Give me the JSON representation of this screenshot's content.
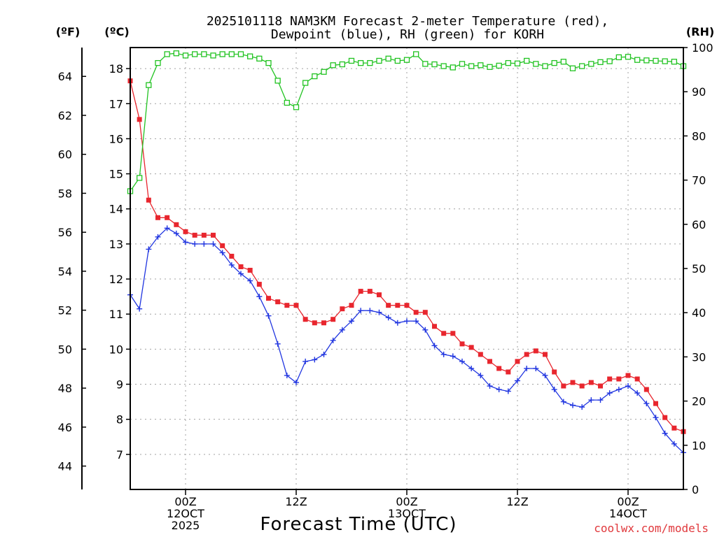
{
  "chart_data": {
    "type": "line",
    "title_line1": "2025101118 NAM3KM Forecast 2-meter Temperature (red),",
    "title_line2": "Dewpoint (blue), RH (green) for KORH",
    "xlabel": "Forecast Time (UTC)",
    "credit": "coolwx.com/models",
    "units": {
      "fahrenheit": "(ºF)",
      "celsius": "(ºC)",
      "rh": "(RH)"
    },
    "fahrenheit_ticks": [
      "64",
      "62",
      "60",
      "58",
      "56",
      "54",
      "52",
      "50",
      "48",
      "46",
      "44"
    ],
    "fahrenheit_values": [
      64,
      62,
      60,
      58,
      56,
      54,
      52,
      50,
      48,
      46,
      44
    ],
    "celsius_ticks": [
      "18",
      "17",
      "16",
      "15",
      "14",
      "13",
      "12",
      "11",
      "10",
      "9",
      "8",
      "7"
    ],
    "celsius_values": [
      18,
      17,
      16,
      15,
      14,
      13,
      12,
      11,
      10,
      9,
      8,
      7
    ],
    "celsius_range": [
      6.0,
      18.6
    ],
    "rh_ticks": [
      "100",
      "90",
      "80",
      "70",
      "60",
      "50",
      "40",
      "30",
      "20",
      "10",
      "0"
    ],
    "rh_values": [
      100,
      90,
      80,
      70,
      60,
      50,
      40,
      30,
      20,
      10,
      0
    ],
    "rh_range": [
      0,
      100
    ],
    "forecast_hour_range": [
      0,
      60
    ],
    "x_ticks": [
      {
        "hour": 6,
        "line1": "00Z",
        "line2": "12OCT",
        "line3": "2025"
      },
      {
        "hour": 18,
        "line1": "12Z",
        "line2": "",
        "line3": ""
      },
      {
        "hour": 30,
        "line1": "00Z",
        "line2": "13OCT",
        "line3": ""
      },
      {
        "hour": 42,
        "line1": "12Z",
        "line2": "",
        "line3": ""
      },
      {
        "hour": 54,
        "line1": "00Z",
        "line2": "14OCT",
        "line3": ""
      }
    ],
    "series": [
      {
        "name": "Temperature",
        "units": "C",
        "color": "#e8262e",
        "marker": "square",
        "values": [
          17.65,
          16.55,
          14.25,
          13.75,
          13.75,
          13.55,
          13.35,
          13.25,
          13.25,
          13.25,
          12.95,
          12.65,
          12.35,
          12.25,
          11.85,
          11.45,
          11.35,
          11.25,
          11.25,
          10.85,
          10.75,
          10.75,
          10.85,
          11.15,
          11.25,
          11.65,
          11.65,
          11.55,
          11.25,
          11.25,
          11.25,
          11.05,
          11.05,
          10.65,
          10.45,
          10.45,
          10.15,
          10.05,
          9.85,
          9.65,
          9.45,
          9.35,
          9.65,
          9.85,
          9.95,
          9.85,
          9.35,
          8.95,
          9.05,
          8.95,
          9.05,
          8.95,
          9.15,
          9.15,
          9.25,
          9.15,
          8.85,
          8.45,
          8.05,
          7.75,
          7.65
        ]
      },
      {
        "name": "Dewpoint",
        "units": "C",
        "color": "#2035e0",
        "marker": "plus",
        "values": [
          11.55,
          11.15,
          12.85,
          13.2,
          13.45,
          13.3,
          13.05,
          13.0,
          13.0,
          13.0,
          12.75,
          12.4,
          12.15,
          11.95,
          11.5,
          10.95,
          10.15,
          9.25,
          9.05,
          9.65,
          9.7,
          9.85,
          10.25,
          10.55,
          10.8,
          11.1,
          11.1,
          11.05,
          10.9,
          10.75,
          10.8,
          10.8,
          10.55,
          10.1,
          9.85,
          9.8,
          9.65,
          9.45,
          9.25,
          8.95,
          8.85,
          8.8,
          9.1,
          9.45,
          9.45,
          9.25,
          8.85,
          8.5,
          8.4,
          8.35,
          8.55,
          8.55,
          8.75,
          8.85,
          8.95,
          8.75,
          8.45,
          8.05,
          7.6,
          7.3,
          7.05
        ]
      },
      {
        "name": "RH",
        "units": "%",
        "color": "#22c322",
        "marker": "open-square",
        "values": [
          67.5,
          70.5,
          91.5,
          96.5,
          98.5,
          98.7,
          98.2,
          98.5,
          98.5,
          98.2,
          98.5,
          98.5,
          98.5,
          98.0,
          97.5,
          96.5,
          92.5,
          87.5,
          86.5,
          92.0,
          93.5,
          94.5,
          96.0,
          96.2,
          97.0,
          96.5,
          96.5,
          97.0,
          97.5,
          97.0,
          97.2,
          98.5,
          96.3,
          96.2,
          95.8,
          95.5,
          96.3,
          95.8,
          96.0,
          95.6,
          95.9,
          96.5,
          96.4,
          97.0,
          96.3,
          95.8,
          96.5,
          96.8,
          95.3,
          95.8,
          96.3,
          96.7,
          96.9,
          97.8,
          97.9,
          97.2,
          97.1,
          97.0,
          96.9,
          96.8,
          95.8
        ]
      }
    ]
  }
}
